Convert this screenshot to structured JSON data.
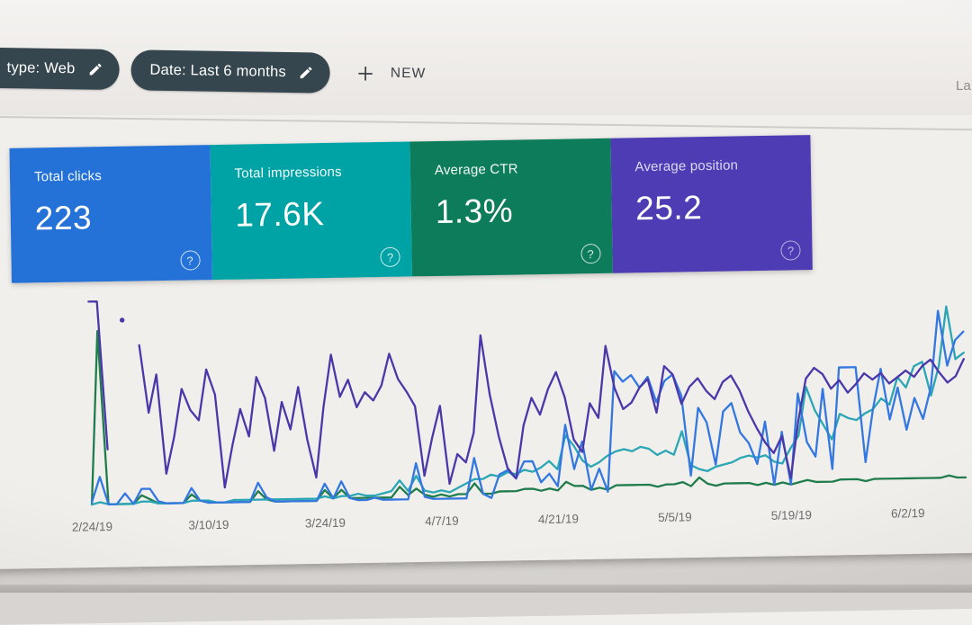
{
  "header": {
    "top_right_partial_text": "La",
    "chips": [
      {
        "label": "type: Web",
        "icon": "edit"
      },
      {
        "label": "Date: Last 6 months",
        "icon": "edit"
      }
    ],
    "new_button": {
      "label": "NEW",
      "icon": "plus"
    }
  },
  "icons": {
    "help_glyph": "?"
  },
  "metric_cards": [
    {
      "label": "Total clicks",
      "value": "223",
      "color": "#2472d8"
    },
    {
      "label": "Total impressions",
      "value": "17.6K",
      "color": "#00a3a5"
    },
    {
      "label": "Average CTR",
      "value": "1.3%",
      "color": "#0d7c5a"
    },
    {
      "label": "Average position",
      "value": "25.2",
      "color": "#4d3cb4"
    }
  ],
  "chart_data": {
    "type": "line",
    "title": "",
    "xlabel": "",
    "ylabel": "",
    "x_tick_labels": [
      "2/24/19",
      "3/10/19",
      "3/24/19",
      "4/7/19",
      "4/21/19",
      "5/5/19",
      "5/19/19",
      "6/2/19"
    ],
    "x_tick_days": [
      0,
      14,
      28,
      42,
      56,
      70,
      84,
      98
    ],
    "days_total": 106,
    "start_date_label": "2/24/19",
    "units": "relative_height_percent_of_plot",
    "ylim": [
      0,
      100
    ],
    "y_axis_visible": false,
    "grid": false,
    "legend_position": "none",
    "series": [
      {
        "name": "Average CTR",
        "color": "#1f7c4b",
        "values": [
          1,
          83,
          1,
          1,
          1,
          1,
          5,
          3,
          1,
          1,
          1,
          1,
          5,
          2,
          1,
          1,
          1,
          1,
          1,
          1,
          6,
          2,
          1,
          1,
          1,
          1,
          1,
          1,
          6,
          2,
          6,
          2,
          2,
          2,
          2,
          2,
          2,
          7,
          3,
          6,
          3,
          2,
          3,
          2,
          3,
          3,
          8,
          3,
          3,
          4,
          4,
          4,
          5,
          5,
          4,
          5,
          4,
          8,
          6,
          6,
          4,
          5,
          4,
          6,
          6,
          6,
          6,
          6,
          5,
          6,
          6,
          7,
          5,
          9,
          6,
          5,
          6,
          6,
          6,
          6,
          5,
          6,
          5,
          6,
          5,
          6,
          7,
          6,
          6,
          6,
          7,
          7,
          7,
          6,
          7,
          7,
          7,
          7,
          7,
          7,
          7,
          7,
          7,
          8,
          7,
          7
        ]
      },
      {
        "name": "Total impressions",
        "color": "#2aa6b4",
        "values": [
          1,
          2,
          1,
          1,
          1,
          1,
          2,
          2,
          1,
          1,
          1,
          1,
          2,
          2,
          2,
          1,
          1,
          2,
          2,
          2,
          2,
          2,
          2,
          2,
          2,
          2,
          2,
          2,
          3,
          2,
          3,
          3,
          4,
          3,
          3,
          4,
          5,
          10,
          5,
          12,
          5,
          4,
          5,
          4,
          6,
          8,
          10,
          10,
          12,
          11,
          13,
          12,
          14,
          13,
          15,
          18,
          14,
          30,
          25,
          18,
          15,
          17,
          20,
          22,
          23,
          22,
          24,
          23,
          20,
          22,
          20,
          31,
          15,
          13,
          12,
          14,
          15,
          16,
          18,
          19,
          18,
          19,
          16,
          15,
          22,
          28,
          51,
          40,
          33,
          26,
          38,
          36,
          35,
          38,
          40,
          45,
          42,
          55,
          50,
          60,
          62,
          46,
          60,
          88,
          63,
          66
        ]
      },
      {
        "name": "Total clicks",
        "color": "#3377e0",
        "values": [
          2,
          14,
          1,
          1,
          6,
          1,
          8,
          8,
          2,
          1,
          1,
          1,
          8,
          2,
          1,
          1,
          1,
          1,
          1,
          1,
          10,
          3,
          1,
          1,
          1,
          1,
          1,
          1,
          9,
          2,
          10,
          2,
          1,
          1,
          2,
          1,
          1,
          1,
          1,
          18,
          2,
          1,
          1,
          1,
          1,
          1,
          20,
          3,
          1,
          12,
          14,
          10,
          18,
          18,
          8,
          12,
          6,
          35,
          14,
          27,
          4,
          14,
          3,
          60,
          55,
          58,
          52,
          57,
          45,
          55,
          58,
          48,
          10,
          42,
          35,
          15,
          40,
          44,
          30,
          25,
          15,
          35,
          5,
          30,
          5,
          48,
          25,
          18,
          50,
          12,
          60,
          60,
          60,
          15,
          40,
          59,
          35,
          50,
          30,
          45,
          35,
          50,
          86,
          60,
          72,
          76
        ]
      },
      {
        "name": "Average position",
        "color": "#4a38a9",
        "values": [
          97,
          97,
          27,
          null,
          88,
          null,
          76,
          44,
          62,
          15,
          32,
          55,
          45,
          40,
          64,
          52,
          8,
          28,
          45,
          32,
          60,
          50,
          25,
          48,
          35,
          55,
          30,
          12,
          45,
          70,
          50,
          58,
          45,
          52,
          48,
          55,
          70,
          58,
          52,
          45,
          12,
          30,
          45,
          8,
          22,
          18,
          32,
          78,
          50,
          30,
          15,
          10,
          35,
          48,
          40,
          52,
          60,
          48,
          28,
          22,
          45,
          38,
          72,
          52,
          42,
          45,
          52,
          56,
          40,
          62,
          58,
          44,
          52,
          56,
          50,
          46,
          54,
          57,
          50,
          40,
          32,
          25,
          20,
          28,
          8,
          35,
          55,
          60,
          57,
          50,
          54,
          48,
          52,
          57,
          54,
          57,
          52,
          55,
          58,
          55,
          60,
          63,
          57,
          52,
          55,
          63
        ]
      }
    ]
  }
}
